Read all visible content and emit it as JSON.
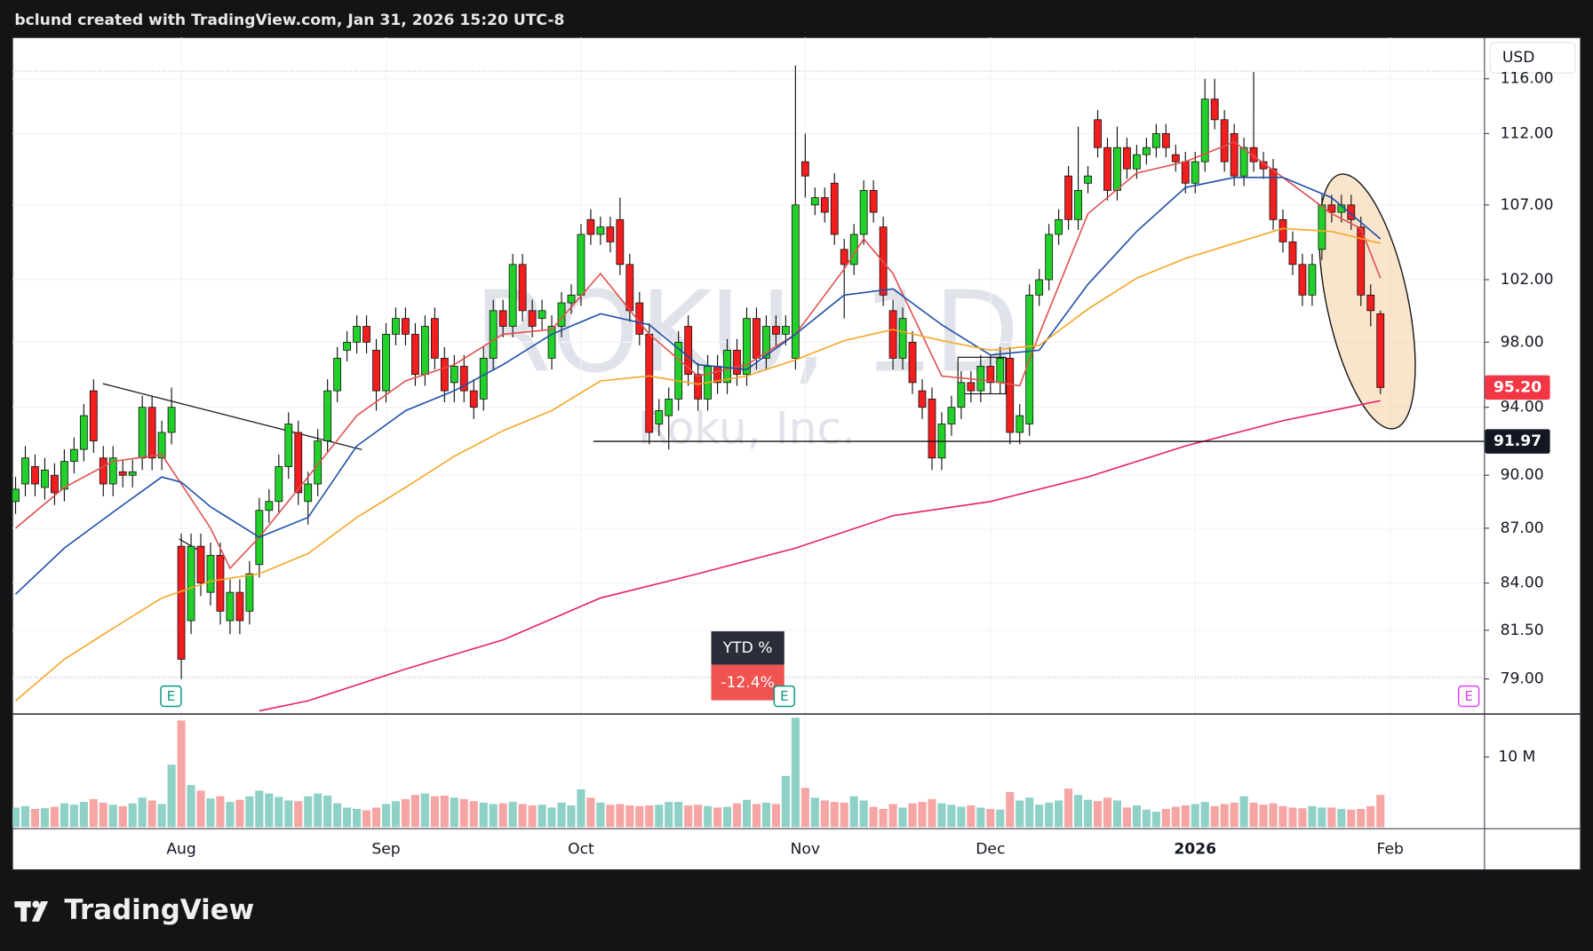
{
  "header": "bclund created with TradingView.com, Jan 31, 2026 15:20 UTC-8",
  "footer": "TradingView",
  "chart_data": {
    "type": "candlestick",
    "watermark_symbol": "ROKU, 1D",
    "watermark_name": "Roku, Inc.",
    "currency": "USD",
    "log_scale": true,
    "grid": true,
    "ylim": [
      77.27,
      119.1
    ],
    "yticks": [
      {
        "value": 79,
        "label": "79.00"
      },
      {
        "value": 81.5,
        "label": "81.50"
      },
      {
        "value": 84,
        "label": "84.00"
      },
      {
        "value": 87,
        "label": "87.00"
      },
      {
        "value": 90,
        "label": "90.00"
      },
      {
        "value": 94,
        "label": "94.00"
      },
      {
        "value": 98,
        "label": "98.00"
      },
      {
        "value": 102,
        "label": "102.00"
      },
      {
        "value": 107,
        "label": "107.00"
      },
      {
        "value": 112,
        "label": "112.00"
      },
      {
        "value": 116,
        "label": "116.00"
      }
    ],
    "categories": [
      null,
      null,
      null,
      null,
      null,
      null,
      null,
      null,
      null,
      null,
      null,
      null,
      null,
      null,
      null,
      null,
      null,
      "Aug",
      null,
      null,
      null,
      null,
      null,
      null,
      null,
      null,
      null,
      null,
      null,
      null,
      null,
      null,
      null,
      null,
      null,
      null,
      null,
      null,
      "Sep",
      null,
      null,
      null,
      null,
      null,
      null,
      null,
      null,
      null,
      null,
      null,
      null,
      null,
      null,
      null,
      null,
      null,
      null,
      null,
      "Oct",
      null,
      null,
      null,
      null,
      null,
      null,
      null,
      null,
      null,
      null,
      null,
      null,
      null,
      null,
      null,
      null,
      null,
      null,
      null,
      null,
      null,
      null,
      "Nov",
      null,
      null,
      null,
      null,
      null,
      null,
      null,
      null,
      null,
      null,
      null,
      null,
      null,
      null,
      null,
      null,
      null,
      null,
      "Dec",
      null,
      null,
      null,
      null,
      null,
      null,
      null,
      null,
      null,
      null,
      null,
      null,
      null,
      null,
      null,
      null,
      null,
      null,
      null,
      null,
      "2026",
      null,
      null,
      null,
      null,
      null,
      null,
      null,
      null,
      null,
      null,
      null,
      null,
      null,
      null,
      null,
      null,
      null,
      null,
      null,
      "Feb"
    ],
    "open": [
      88.5,
      89.5,
      90.5,
      89.3,
      90,
      89.2,
      90.8,
      91.5,
      95,
      91,
      89.5,
      90.2,
      90,
      91,
      94,
      91,
      92.5,
      86,
      82,
      86,
      83.5,
      85.5,
      82,
      83.5,
      82.5,
      85,
      88,
      88.5,
      90.5,
      92.5,
      88.5,
      89.5,
      92,
      95,
      97.5,
      98,
      99,
      97.5,
      95,
      98.5,
      99.5,
      98.5,
      96,
      99.5,
      97,
      95.5,
      96.5,
      95,
      94.5,
      97,
      100,
      99,
      103,
      100,
      99.5,
      97,
      99,
      100.5,
      101,
      106,
      105,
      105.5,
      106,
      103,
      100.5,
      98.5,
      93,
      93.5,
      94.5,
      99,
      96,
      94.5,
      96.5,
      95.5,
      97.5,
      96,
      99.5,
      97,
      99,
      98.5,
      97,
      110,
      107,
      107.5,
      108.5,
      104,
      103,
      105,
      108,
      105.5,
      100,
      97,
      98,
      95,
      94.5,
      91,
      93,
      94,
      95.5,
      95,
      96.5,
      95.5,
      97,
      92.5,
      93,
      101,
      102,
      105,
      109,
      106,
      108.5,
      113,
      111,
      108,
      111,
      109.5,
      110.5,
      111,
      112,
      110.5,
      110,
      108.5,
      110,
      114.5,
      113,
      112,
      109,
      111,
      110,
      109.5,
      106,
      104.5,
      103,
      101,
      104,
      107,
      106.5,
      107,
      105.5,
      101,
      99.8,
      null
    ],
    "high": [
      89.9,
      91.7,
      91.2,
      91,
      90.7,
      91.5,
      92.2,
      94.2,
      95.7,
      91.7,
      91.7,
      90.9,
      90.9,
      94.7,
      94.7,
      93.2,
      95.2,
      86.7,
      86.7,
      86.7,
      86.2,
      86.2,
      84.2,
      84.2,
      85.2,
      88.7,
      89.2,
      91.2,
      93.7,
      93.2,
      90.2,
      92.7,
      95.7,
      97.7,
      98.7,
      99.7,
      99.7,
      98.2,
      99.2,
      100.2,
      100.2,
      99.2,
      99.7,
      100.2,
      97.7,
      97.2,
      97.2,
      95.7,
      97.7,
      100.7,
      100.7,
      103.7,
      103.7,
      100.7,
      100.7,
      99.7,
      101.2,
      101.7,
      105.7,
      106.7,
      106.2,
      106.2,
      107.5,
      103.7,
      101.2,
      99.2,
      94.5,
      95.2,
      98.7,
      99.7,
      96.7,
      97.2,
      97.2,
      98.2,
      98.2,
      100.2,
      100.2,
      99.7,
      99.7,
      99.7,
      117,
      112,
      108.2,
      108.2,
      109.2,
      104.7,
      105.7,
      108.7,
      108.7,
      106.2,
      100.7,
      100.2,
      98.7,
      95.7,
      95.2,
      93.7,
      94.7,
      96.2,
      96.2,
      97.2,
      97.2,
      97.7,
      97.7,
      94.2,
      101.7,
      102.7,
      105.7,
      106.7,
      109.7,
      112.5,
      109.7,
      113.7,
      111.7,
      112.5,
      111.7,
      111.2,
      111.7,
      112.7,
      112.7,
      111.2,
      110.7,
      110.7,
      116,
      116,
      113.7,
      112.7,
      111.7,
      116.5,
      110.7,
      110.2,
      106.7,
      105.2,
      103.7,
      103.7,
      107.7,
      107.7,
      107.7,
      107.7,
      106.2,
      101.7,
      100,
      null
    ],
    "low": [
      87.8,
      88.8,
      88.8,
      88.6,
      88.3,
      88.5,
      90.1,
      90.8,
      91.3,
      88.8,
      88.8,
      89.3,
      89.3,
      90.3,
      90.3,
      90.3,
      91.8,
      79,
      81.3,
      83.3,
      82.8,
      81.8,
      81.3,
      81.3,
      81.8,
      84.3,
      87.3,
      87.8,
      89.8,
      88.3,
      87.2,
      88.8,
      91.3,
      94.3,
      96.8,
      97.3,
      97.3,
      93.8,
      94.3,
      97.8,
      97.8,
      95.3,
      95.3,
      96.3,
      94.3,
      94.3,
      94.3,
      93.3,
      93.8,
      96.3,
      98.3,
      98.3,
      99.3,
      98.3,
      98.8,
      96.3,
      98.3,
      99.8,
      100.3,
      104.3,
      104.3,
      103.8,
      102.3,
      99.3,
      97.8,
      91.8,
      92.3,
      91.5,
      93.8,
      95.3,
      93.8,
      93.8,
      94.8,
      94.8,
      95.3,
      95.3,
      96.3,
      96.3,
      97.8,
      97.8,
      96.3,
      107.5,
      106.3,
      105.8,
      104.3,
      99.5,
      102.3,
      104.3,
      105.8,
      100.3,
      96.3,
      96.3,
      94.8,
      93.3,
      90.3,
      90.3,
      92.3,
      93.3,
      94.3,
      94.3,
      94.8,
      94.8,
      91.8,
      91.8,
      92.3,
      100.3,
      101.3,
      104.3,
      105.3,
      105.3,
      107.8,
      110.3,
      107.3,
      107.3,
      108.8,
      108.8,
      109.8,
      110.3,
      110.3,
      109.3,
      107.8,
      107.8,
      109.3,
      112.3,
      109.3,
      108.3,
      108.3,
      109.3,
      108.8,
      105.3,
      103.8,
      102.3,
      100.3,
      100.3,
      103.3,
      105.8,
      105.8,
      105.3,
      100.3,
      99,
      94.8,
      null
    ],
    "close": [
      89.2,
      91,
      89.5,
      90.3,
      89,
      90.8,
      91.5,
      93.5,
      92,
      89.5,
      91,
      90,
      90.2,
      94,
      91,
      92.5,
      94,
      80,
      86,
      84,
      85.5,
      82.5,
      83.5,
      82,
      84.5,
      88,
      88.5,
      90.5,
      93,
      89,
      89.5,
      92,
      95,
      97,
      98,
      99,
      98,
      95,
      98.5,
      99.5,
      98.5,
      96,
      99,
      97,
      95,
      96.5,
      95,
      94,
      97,
      100,
      99,
      103,
      100,
      99,
      100,
      99,
      100.5,
      101,
      105,
      105,
      105.5,
      104.5,
      103,
      100,
      98.5,
      92.5,
      93.8,
      94.5,
      98,
      96,
      94.5,
      96.5,
      95.5,
      97.5,
      96,
      99.5,
      97,
      99,
      98.5,
      99,
      107,
      109,
      107.5,
      106.5,
      105,
      103,
      105,
      108,
      106.5,
      101,
      97,
      99.5,
      95.5,
      94,
      91,
      93,
      94,
      95.5,
      95,
      96.5,
      95.5,
      97,
      92.5,
      93.5,
      101,
      102,
      105,
      106,
      106,
      108,
      109,
      111,
      108,
      111,
      109.5,
      110.5,
      111,
      112,
      111,
      110,
      108.5,
      110,
      114.5,
      113,
      110,
      109,
      111,
      110,
      109.5,
      106,
      104.5,
      103,
      101,
      103,
      107,
      106.5,
      107,
      106,
      101,
      100,
      95.2,
      null
    ],
    "up_color": "#22d02a",
    "down_color": "#f21d1d",
    "volume": {
      "ylim": [
        0,
        15.9
      ],
      "yticks": [
        {
          "value": 10,
          "label": "10 M"
        }
      ],
      "up_color": "#8fd1c6",
      "down_color": "#f6a5a5",
      "values": [
        2.8,
        3,
        2.6,
        2.7,
        2.9,
        3.4,
        3.2,
        3.6,
        4,
        3.5,
        3.2,
        3,
        3.4,
        4.2,
        3.8,
        3.3,
        8.9,
        15.2,
        6,
        5.2,
        4.1,
        4.4,
        3.6,
        3.9,
        4.4,
        5.2,
        4.8,
        4.3,
        3.8,
        3.7,
        4.4,
        4.8,
        4.5,
        3.4,
        2.8,
        2.6,
        2.4,
        2.8,
        3.3,
        3.7,
        4,
        4.6,
        4.8,
        4.4,
        4.5,
        4.2,
        4,
        3.7,
        3.5,
        3.3,
        3.4,
        3.6,
        3.3,
        3.1,
        3.2,
        2.8,
        3.5,
        3.1,
        5.4,
        4.2,
        3.5,
        3.2,
        3.3,
        3.1,
        3,
        3.1,
        3.2,
        3.6,
        3.6,
        3.1,
        3.2,
        3,
        2.8,
        2.9,
        3.4,
        3.9,
        3.3,
        3.5,
        3.3,
        7.3,
        15.6,
        5.6,
        4.2,
        3.8,
        3.6,
        3.5,
        4.4,
        3.8,
        2.9,
        2.6,
        3.3,
        2.8,
        3.4,
        3.6,
        4,
        3.4,
        3.2,
        2.9,
        3.1,
        2.8,
        2.6,
        2.5,
        5,
        3.8,
        4.2,
        3.2,
        3.5,
        3.8,
        5.5,
        4.6,
        3.9,
        3.7,
        4.2,
        3.8,
        2.8,
        3.1,
        2.5,
        2.2,
        2.6,
        2.9,
        3.1,
        3.3,
        3.6,
        3,
        3.3,
        3.5,
        4.4,
        3.5,
        3.2,
        3.4,
        3,
        2.8,
        2.7,
        3,
        2.8,
        2.8,
        2.6,
        2.5,
        2.6,
        3,
        4.6,
        null
      ]
    },
    "moving_averages": [
      {
        "color": "#e05050",
        "x": [
          0,
          5,
          10,
          15,
          20,
          22,
          25,
          30,
          35,
          40,
          45,
          50,
          55,
          60,
          65,
          70,
          75,
          80,
          85,
          87,
          90,
          95,
          100,
          103,
          105,
          110,
          115,
          120,
          125,
          130,
          135,
          138,
          140
        ],
        "values": [
          87,
          89.3,
          90.8,
          91.2,
          87,
          84.8,
          86.5,
          89.9,
          93.5,
          95.6,
          96.6,
          98.5,
          98.8,
          102.4,
          98.5,
          95.9,
          96.6,
          98.5,
          102.7,
          104.7,
          102.4,
          95.9,
          95.6,
          95.3,
          98.5,
          106.4,
          109.2,
          110,
          111.4,
          108.9,
          106.4,
          105.4,
          102.1
        ]
      },
      {
        "color": "#1f4fa8",
        "x": [
          0,
          5,
          10,
          15,
          17,
          20,
          25,
          30,
          35,
          40,
          45,
          50,
          55,
          60,
          65,
          70,
          75,
          80,
          85,
          90,
          95,
          100,
          105,
          110,
          115,
          120,
          125,
          130,
          135,
          140
        ],
        "values": [
          83.4,
          85.9,
          87.9,
          89.9,
          89.6,
          88.2,
          86.5,
          87.6,
          91.7,
          93.8,
          95,
          96.6,
          98.5,
          99.8,
          99.1,
          96.6,
          96.3,
          98.5,
          101,
          101.4,
          99.1,
          97.2,
          97.5,
          101.7,
          105.2,
          108.2,
          108.9,
          108.9,
          107.5,
          104.7
        ]
      },
      {
        "color": "#f5a623",
        "x": [
          0,
          5,
          10,
          15,
          20,
          25,
          30,
          35,
          40,
          45,
          50,
          55,
          60,
          65,
          70,
          75,
          80,
          85,
          90,
          95,
          100,
          105,
          110,
          115,
          120,
          125,
          130,
          135,
          140
        ],
        "values": [
          77.9,
          80,
          81.6,
          83.2,
          84.1,
          84.5,
          85.6,
          87.6,
          89.3,
          91.1,
          92.6,
          93.8,
          95.6,
          95.9,
          95.4,
          95.9,
          96.9,
          98.1,
          98.8,
          98.1,
          97.5,
          97.8,
          100.1,
          102.1,
          103.4,
          104.4,
          105.4,
          105.2,
          104.4
        ]
      },
      {
        "color": "#e91e63",
        "x": [
          25,
          30,
          40,
          50,
          60,
          70,
          80,
          90,
          100,
          110,
          120,
          130,
          140
        ],
        "values": [
          77.4,
          77.9,
          79.5,
          81,
          83.2,
          84.5,
          85.9,
          87.7,
          88.5,
          89.9,
          91.7,
          93.2,
          94.4
        ]
      }
    ],
    "hline": 91.97,
    "price_label": {
      "value": 95.2,
      "label": "95.20"
    },
    "ytd": {
      "title": "YTD %",
      "value": -12.4,
      "value_label": "-12.4%"
    },
    "earnings": [
      "E",
      "E",
      "E"
    ]
  }
}
